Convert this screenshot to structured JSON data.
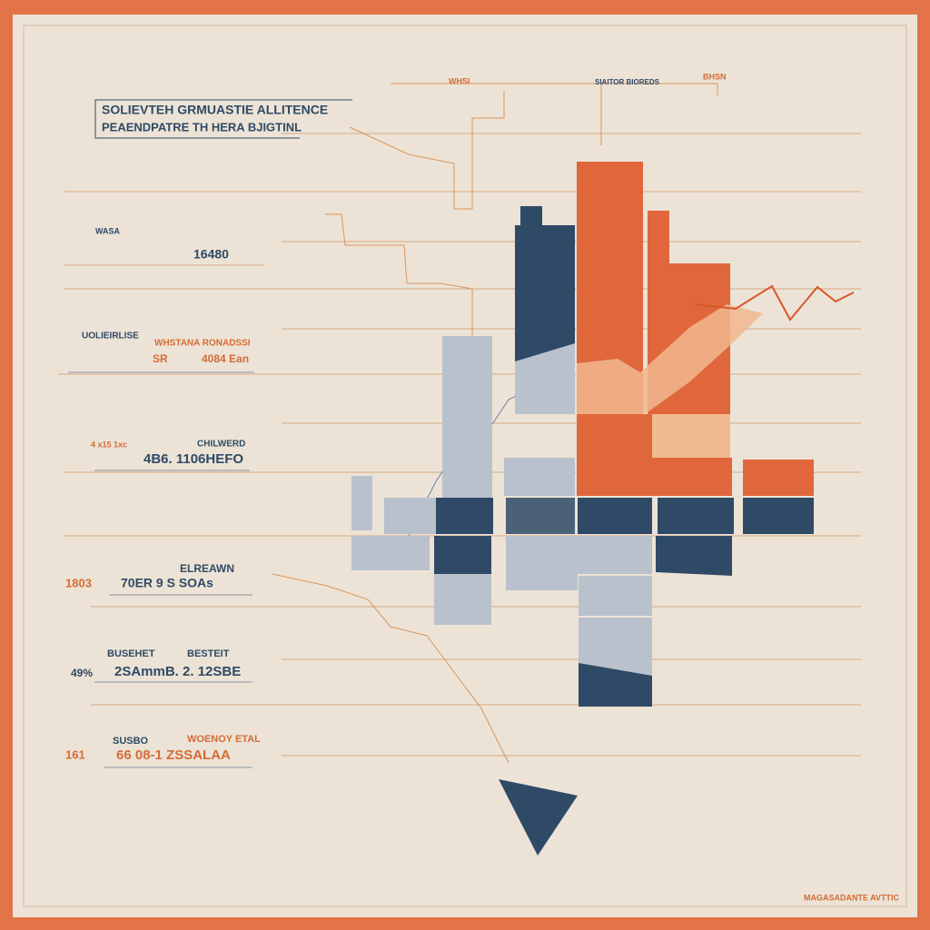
{
  "header": {
    "title": "SOLIEVTEH GRMUASTIE ALLITENCE",
    "subtitle": "PEAENDPATRE TH HERA BJIGTINL"
  },
  "top_labels": [
    "WHSI",
    "SIAITOR BIOREDS",
    "BHSN"
  ],
  "blocks": [
    {
      "label": "WASA",
      "value": "16480"
    },
    {
      "label": "UOLIEIRLISE",
      "side": "WHSTANA RONADSSI",
      "code": "SR",
      "value": "4084 Ean"
    },
    {
      "label": "4 x15 1xc",
      "side": "CHILWERD",
      "value": "4B6. 1106HEFO"
    },
    {
      "label": "1803",
      "side": "ELREAWN",
      "value": "70ER 9 S SOAs"
    },
    {
      "label": "BUSEHET",
      "side": "BESTEIT",
      "code": "49%",
      "value": "2SAmmB. 2. 12SBE"
    },
    {
      "label": "SUSBO",
      "side": "WOENOY ETAL",
      "code": "161",
      "value": "66 08-1 ZSSALAA"
    }
  ],
  "footer": "MAGASADANTE AVTTIC"
}
